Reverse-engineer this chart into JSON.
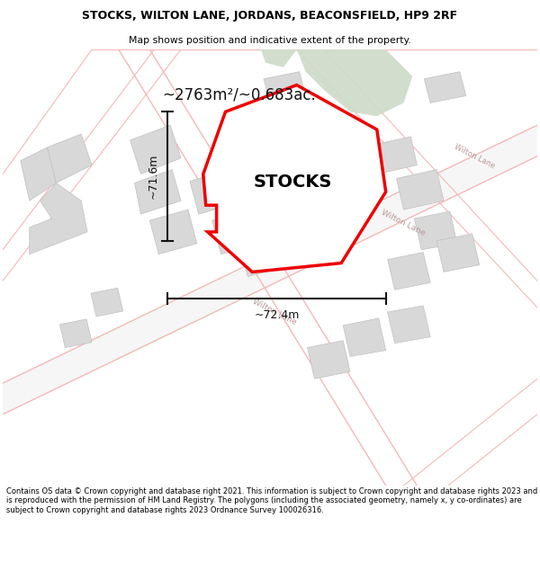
{
  "title": "STOCKS, WILTON LANE, JORDANS, BEACONSFIELD, HP9 2RF",
  "subtitle": "Map shows position and indicative extent of the property.",
  "area_text": "~2763m²/~0.683ac.",
  "width_text": "~72.4m",
  "height_text": "~71.6m",
  "copyright_text": "Contains OS data © Crown copyright and database right 2021. This information is subject to Crown copyright and database rights 2023 and is reproduced with the permission of HM Land Registry. The polygons (including the associated geometry, namely x, y co-ordinates) are subject to Crown copyright and database rights 2023 Ordnance Survey 100026316.",
  "bg_color": "#ffffff",
  "map_bg": "#f8f8f8",
  "property_color": "#ee0000",
  "road_color": "#f5b8b8",
  "road_fill": "#f0f0f0",
  "building_color": "#d8d8d8",
  "building_edge": "#c0c0c0",
  "green_color": "#cddbc8",
  "road_label_color": "#b89898",
  "dim_color": "#111111"
}
